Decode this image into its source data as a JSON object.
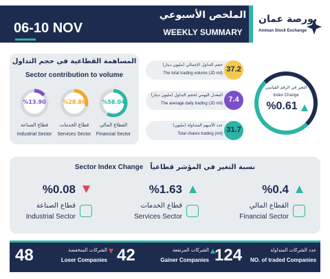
{
  "header": {
    "date": "06-10 NOV",
    "title_ar": "الملخص الأسبوعي",
    "title_en": "WEEKLY SUMMARY",
    "logo_ar": "بورصة عمان",
    "logo_en": "Amman Stock Exchange"
  },
  "sector_contribution": {
    "title_ar": "المساهمة القطاعية في حجم التداول",
    "title_en": "Sector contribution to volume",
    "sectors": [
      {
        "value": 13.9,
        "label": "%13.90",
        "name_ar": "قطاع الصناعة",
        "name_en": "Industrial Sector",
        "color": "#7b4fc9"
      },
      {
        "value": 28.86,
        "label": "%28.86",
        "name_ar": "قطاع الخدمات",
        "name_en": "Services Sector",
        "color": "#f5a623"
      },
      {
        "value": 58.04,
        "label": "%58.04",
        "name_ar": "القطاع المالي",
        "name_en": "Financial Sector",
        "color": "#2bb5a6"
      }
    ]
  },
  "stats": [
    {
      "value": "37.2",
      "label_ar": "حجم التداول الإجمالي (مليون دينار)",
      "label_en": "The total trading volume (JD mil)",
      "color": "#f2c94c"
    },
    {
      "value": "7.4",
      "label_ar": "المعدل اليومي لحجم التداول (مليون دينار)",
      "label_en": "The average daily trading (JD mil)",
      "color": "#7b4fc9"
    },
    {
      "value": "31.7",
      "label_ar": "عدد الأسهم المتداولة (مليون)",
      "label_en": "Total shares trading (mil)",
      "color": "#2bb5a6"
    }
  ],
  "index_change": {
    "label_ar": "التغير في الرقم القياسي",
    "label_en": "Index Change",
    "value": "%0.61",
    "direction": "up"
  },
  "sector_index_change": {
    "title_ar": "نسبة التغير في المؤشر قطاعياً",
    "title_en": "Sector Index Change",
    "sectors": [
      {
        "value": "%0.08",
        "direction": "down",
        "name_ar": "قطاع الصناعة",
        "name_en": "Industrial Sector"
      },
      {
        "value": "%1.63",
        "direction": "up",
        "name_ar": "قطاع الخدمات",
        "name_en": "Services Sector"
      },
      {
        "value": "%0.4",
        "direction": "up",
        "name_ar": "القطاع المالي",
        "name_en": "Financial Sector"
      }
    ]
  },
  "companies": [
    {
      "value": "48",
      "label_ar": "الشركات المنخفضة",
      "label_en": "Loser Companies",
      "direction": "down"
    },
    {
      "value": "42",
      "label_ar": "الشركات المرتفعة",
      "label_en": "Gainer Companies",
      "direction": "up"
    },
    {
      "value": "124",
      "label_ar": "عدد الشركات المتداولة",
      "label_en": "NO. of traded Companies",
      "direction": null
    }
  ]
}
